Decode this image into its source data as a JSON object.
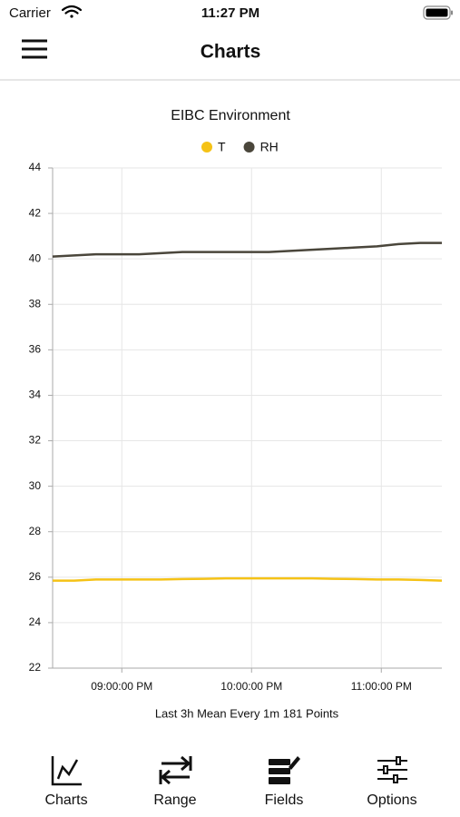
{
  "status_bar": {
    "carrier": "Carrier",
    "time": "11:27 PM"
  },
  "nav": {
    "title": "Charts"
  },
  "chart_data": {
    "type": "line",
    "title": "EIBC Environment",
    "xlabel": "Last 3h Mean Every 1m 181 Points",
    "x": [
      "08:28:00 PM",
      "08:38:00 PM",
      "08:48:00 PM",
      "08:58:00 PM",
      "09:08:00 PM",
      "09:18:00 PM",
      "09:28:00 PM",
      "09:38:00 PM",
      "09:48:00 PM",
      "09:58:00 PM",
      "10:08:00 PM",
      "10:18:00 PM",
      "10:28:00 PM",
      "10:38:00 PM",
      "10:48:00 PM",
      "10:58:00 PM",
      "11:08:00 PM",
      "11:18:00 PM",
      "11:28:00 PM"
    ],
    "series": [
      {
        "name": "T",
        "color": "#f5c216",
        "values": [
          25.85,
          25.85,
          25.9,
          25.9,
          25.9,
          25.9,
          25.92,
          25.93,
          25.95,
          25.95,
          25.95,
          25.95,
          25.95,
          25.93,
          25.92,
          25.9,
          25.9,
          25.88,
          25.85
        ]
      },
      {
        "name": "RH",
        "color": "#4a463b",
        "values": [
          40.1,
          40.15,
          40.2,
          40.2,
          40.2,
          40.25,
          40.3,
          40.3,
          40.3,
          40.3,
          40.3,
          40.35,
          40.4,
          40.45,
          40.5,
          40.55,
          40.65,
          40.7,
          40.7
        ]
      }
    ],
    "xlim": [
      "08:28:00 PM",
      "11:28:00 PM"
    ],
    "xticks": [
      "09:00:00 PM",
      "10:00:00 PM",
      "11:00:00 PM"
    ],
    "ylim": [
      22,
      44
    ],
    "yticks": [
      22,
      24,
      26,
      28,
      30,
      32,
      34,
      36,
      38,
      40,
      42,
      44
    ],
    "grid": true
  },
  "tab_bar": {
    "items": [
      {
        "label": "Charts"
      },
      {
        "label": "Range"
      },
      {
        "label": "Fields"
      },
      {
        "label": "Options"
      }
    ]
  }
}
